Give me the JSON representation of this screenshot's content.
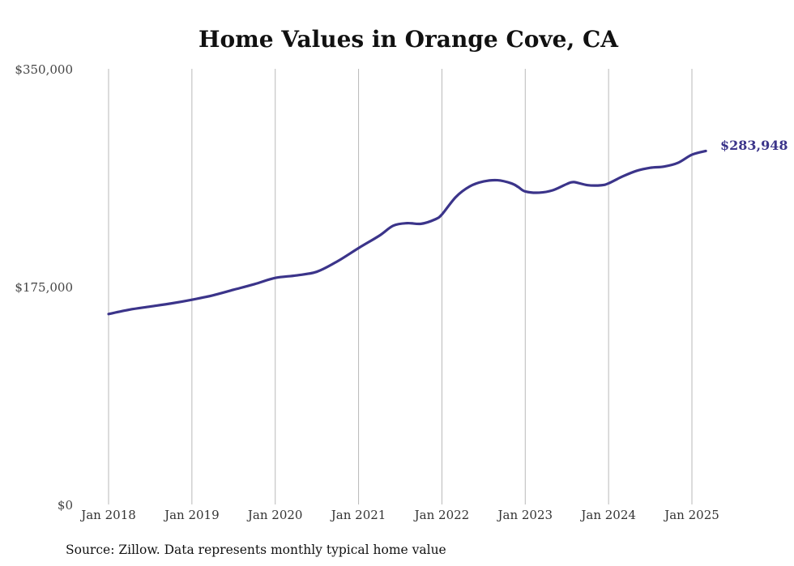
{
  "source_note": "Source: Zillow. Data represents monthly typical home value",
  "colors": {
    "line": "#3b348a",
    "grid": "#b9b9b9",
    "background": "#ffffff"
  },
  "chart_data": {
    "type": "line",
    "title": "Home Values in Orange Cove, CA",
    "xlabel": "",
    "ylabel": "",
    "ylim": [
      0,
      350000
    ],
    "y_ticks": [
      0,
      175000,
      350000
    ],
    "y_tick_labels": [
      "$0",
      "$175,000",
      "$350,000"
    ],
    "x_ticks": [
      "2018-01",
      "2019-01",
      "2020-01",
      "2021-01",
      "2022-01",
      "2023-01",
      "2024-01",
      "2025-01"
    ],
    "x_tick_labels": [
      "Jan 2018",
      "Jan 2019",
      "Jan 2020",
      "Jan 2021",
      "Jan 2022",
      "Jan 2023",
      "Jan 2024",
      "Jan 2025"
    ],
    "grid": "vertical",
    "end_label": "$283,948",
    "series": [
      {
        "x": [
          "2018-01",
          "2018-04",
          "2018-07",
          "2018-10",
          "2019-01",
          "2019-04",
          "2019-07",
          "2019-10",
          "2020-01",
          "2020-04",
          "2020-07",
          "2020-10",
          "2021-01",
          "2021-04",
          "2021-06",
          "2021-08",
          "2021-10",
          "2021-12",
          "2022-01",
          "2022-03",
          "2022-05",
          "2022-07",
          "2022-09",
          "2022-11",
          "2022-12",
          "2023-01",
          "2023-03",
          "2023-05",
          "2023-07",
          "2023-08",
          "2023-10",
          "2023-12",
          "2024-01",
          "2024-03",
          "2024-05",
          "2024-07",
          "2024-09",
          "2024-11",
          "2025-01",
          "2025-03"
        ],
        "values": [
          153000,
          156500,
          159000,
          161500,
          164500,
          168000,
          172500,
          177000,
          182000,
          184000,
          187000,
          195500,
          206000,
          216000,
          224000,
          226000,
          225500,
          229000,
          233000,
          247000,
          255500,
          259500,
          260500,
          258000,
          255000,
          251500,
          250500,
          252500,
          257500,
          259000,
          256500,
          256500,
          258000,
          263500,
          268000,
          270500,
          271500,
          274500,
          281000,
          284000
        ]
      }
    ]
  }
}
